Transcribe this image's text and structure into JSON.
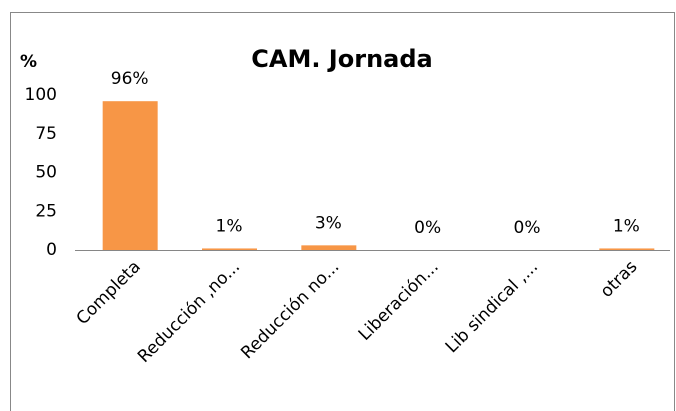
{
  "chart_data": {
    "type": "bar",
    "title": "CAM. Jornada",
    "y_label": "%",
    "categories": [
      "Completa",
      "Reducción ,no...",
      "Reducción no...",
      "Liberación...",
      "Lib sindical ,...",
      "otras"
    ],
    "values": [
      96,
      1,
      3,
      0,
      0,
      1
    ],
    "value_labels": [
      "96%",
      "1%",
      "3%",
      "0%",
      "0%",
      "1%"
    ],
    "color": "#f79646",
    "ylim": [
      0,
      100
    ],
    "yticks": [
      0,
      25,
      50,
      75,
      100
    ],
    "grid": false
  }
}
